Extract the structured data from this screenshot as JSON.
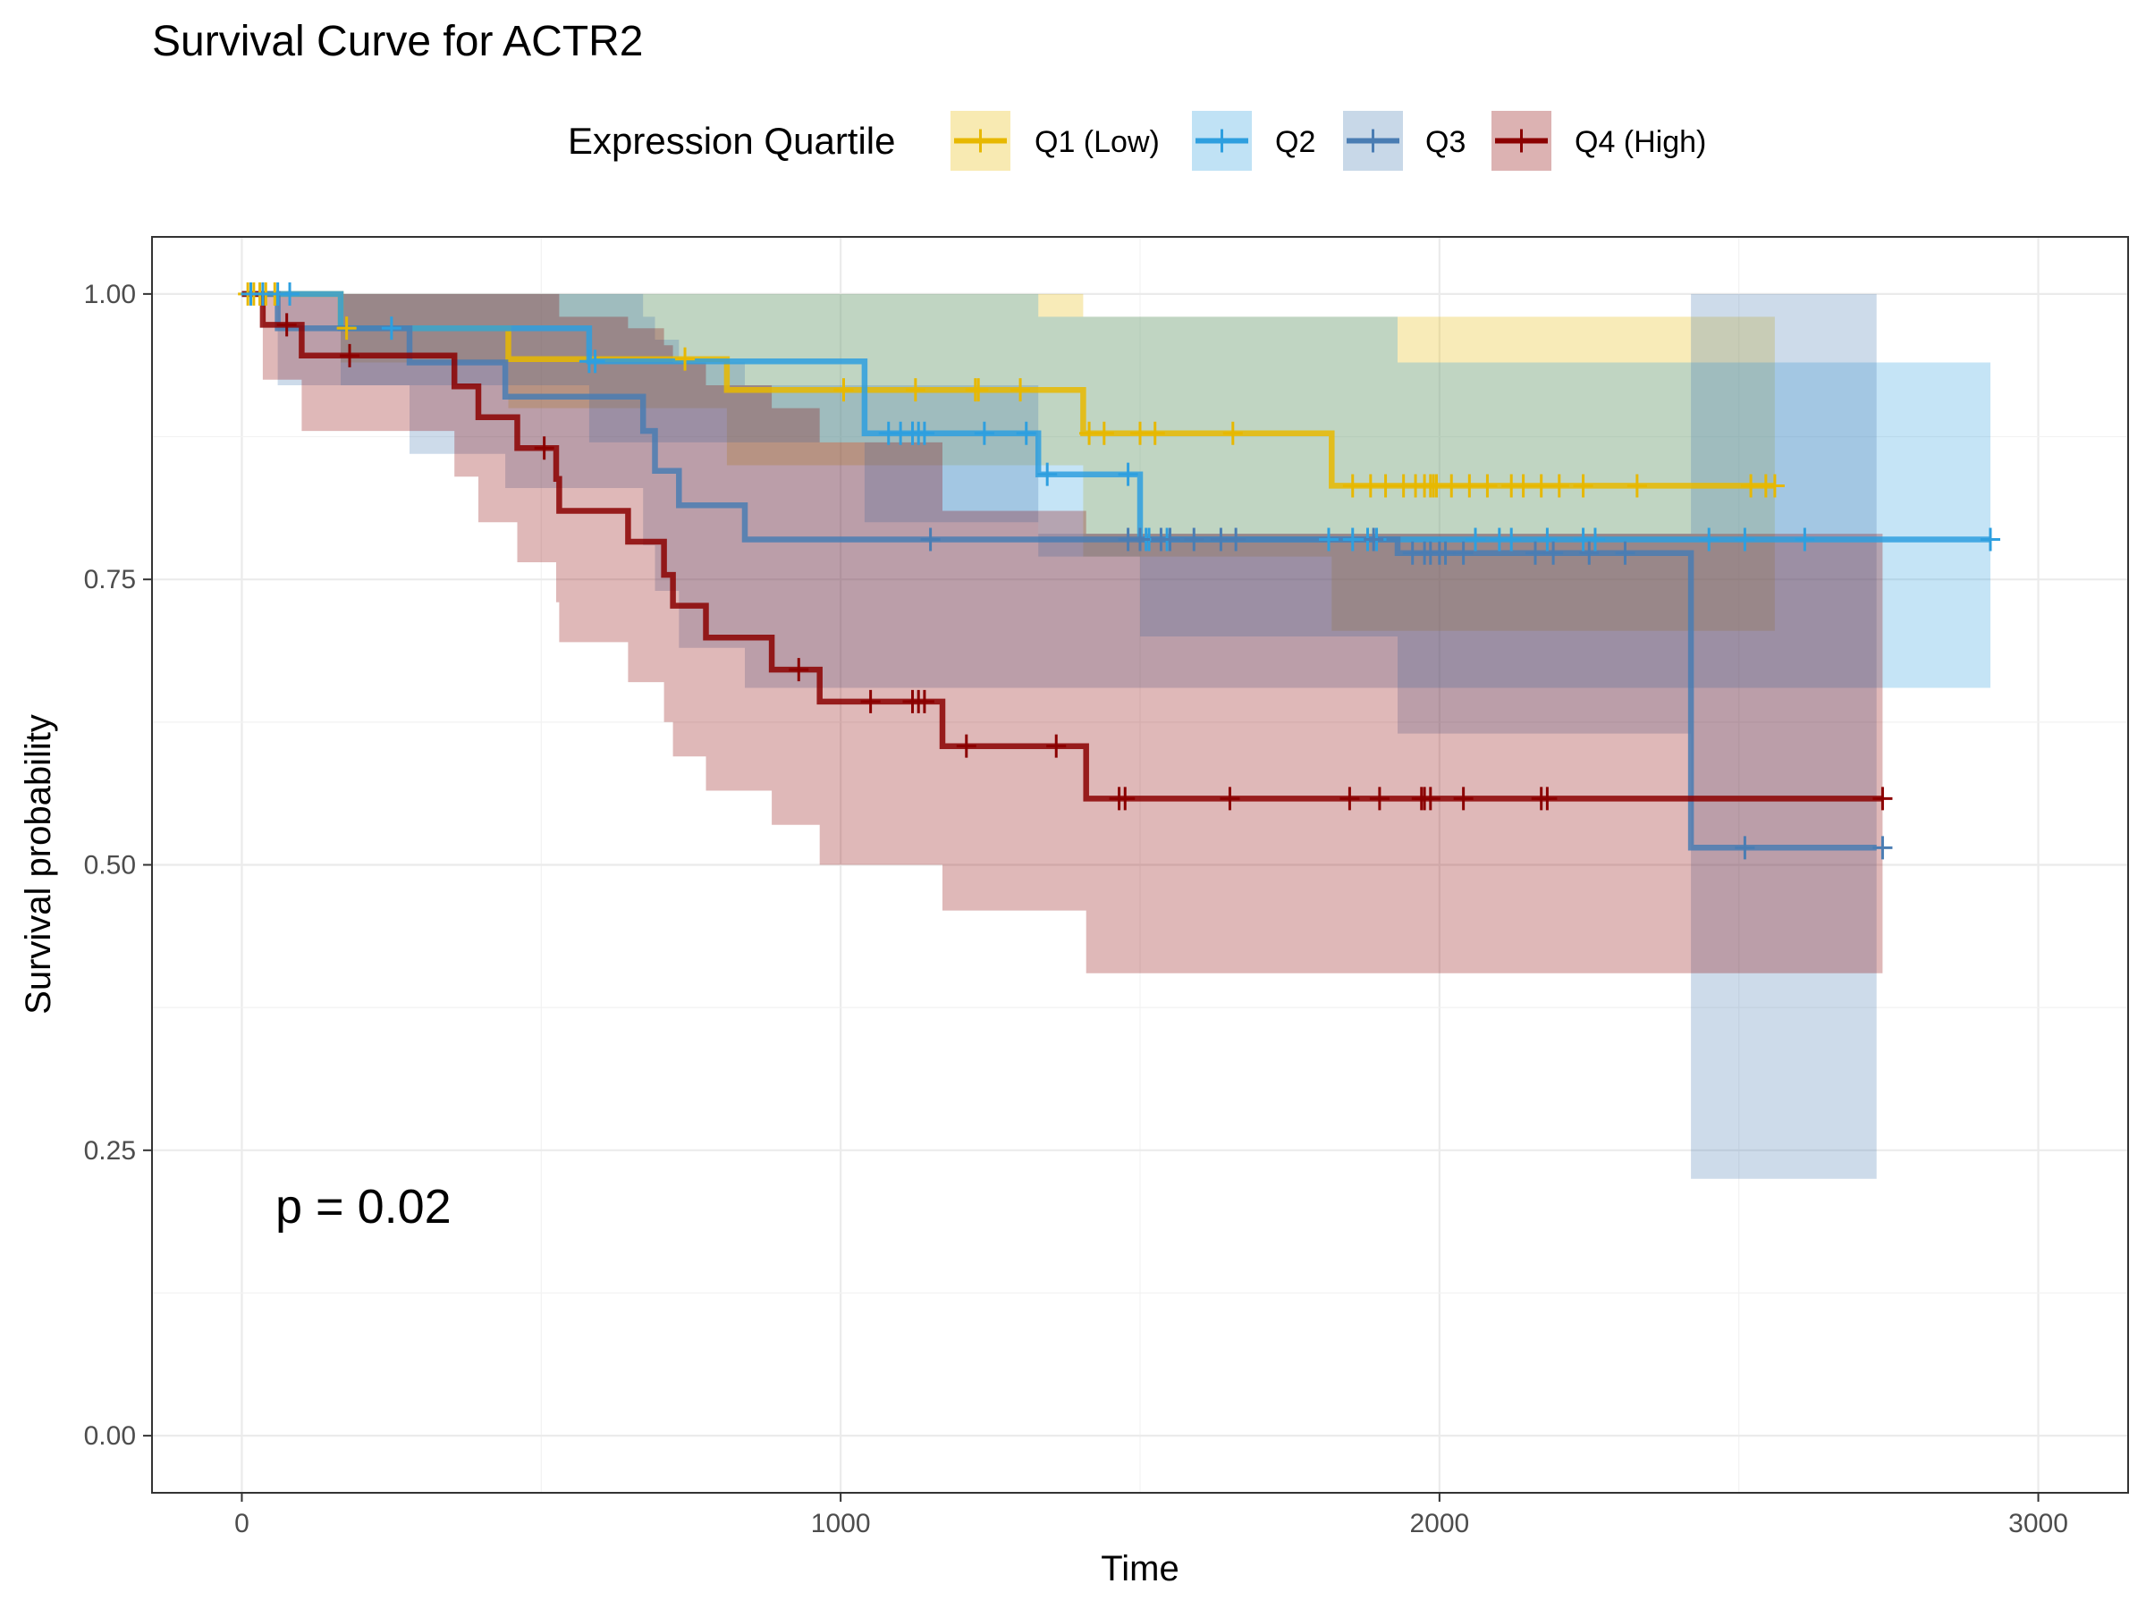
{
  "chart_data": {
    "type": "line",
    "subtype": "kaplan-meier survival curve with confidence bands",
    "title": "Survival Curve for ACTR2",
    "xlabel": "Time",
    "ylabel": "Survival probability",
    "xlim": [
      -150,
      3150
    ],
    "ylim": [
      -0.05,
      1.05
    ],
    "x_ticks": [
      0,
      1000,
      2000,
      3000
    ],
    "y_ticks": [
      0.0,
      0.25,
      0.5,
      0.75,
      1.0
    ],
    "x_tick_labels": [
      "0",
      "1000",
      "2000",
      "3000"
    ],
    "y_tick_labels": [
      "0.00",
      "0.25",
      "0.50",
      "0.75",
      "1.00"
    ],
    "grid": true,
    "legend_title": "Expression Quartile",
    "legend_position": "top",
    "annotation": "p = 0.02",
    "series": [
      {
        "name": "Q1 (Low)",
        "color": "#E7B800",
        "steps": [
          [
            0,
            1.0
          ],
          [
            165,
            0.97
          ],
          [
            445,
            0.943
          ],
          [
            810,
            0.916
          ],
          [
            1405,
            0.878
          ],
          [
            1820,
            0.832
          ],
          [
            2560,
            0.832
          ]
        ],
        "lower": [
          [
            0,
            1.0
          ],
          [
            165,
            0.94
          ],
          [
            445,
            0.9
          ],
          [
            810,
            0.85
          ],
          [
            1405,
            0.77
          ],
          [
            1820,
            0.705
          ],
          [
            2560,
            0.705
          ]
        ],
        "upper": [
          [
            0,
            1.0
          ],
          [
            165,
            1.0
          ],
          [
            445,
            1.0
          ],
          [
            810,
            1.0
          ],
          [
            1405,
            0.98
          ],
          [
            1820,
            0.98
          ],
          [
            2560,
            0.98
          ]
        ],
        "censor_times": [
          10,
          20,
          30,
          40,
          55,
          175,
          740,
          1005,
          1125,
          1225,
          1230,
          1300,
          1415,
          1440,
          1500,
          1525,
          1655,
          1855,
          1885,
          1910,
          1940,
          1960,
          1975,
          1985,
          1990,
          1995,
          2020,
          2050,
          2080,
          2120,
          2140,
          2170,
          2200,
          2240,
          2330,
          2520,
          2545,
          2560
        ]
      },
      {
        "name": "Q2",
        "color": "#2E9FDF",
        "steps": [
          [
            0,
            1.0
          ],
          [
            165,
            0.97
          ],
          [
            580,
            0.941
          ],
          [
            1040,
            0.878
          ],
          [
            1330,
            0.842
          ],
          [
            1500,
            0.785
          ],
          [
            1930,
            0.785
          ],
          [
            2920,
            0.785
          ]
        ],
        "lower": [
          [
            0,
            1.0
          ],
          [
            165,
            0.92
          ],
          [
            580,
            0.87
          ],
          [
            1040,
            0.8
          ],
          [
            1330,
            0.77
          ],
          [
            1500,
            0.7
          ],
          [
            1930,
            0.655
          ],
          [
            2920,
            0.655
          ]
        ],
        "upper": [
          [
            0,
            1.0
          ],
          [
            580,
            1.0
          ],
          [
            1040,
            1.0
          ],
          [
            1330,
            0.98
          ],
          [
            1930,
            0.94
          ],
          [
            2920,
            0.94
          ]
        ],
        "censor_times": [
          15,
          35,
          60,
          80,
          250,
          580,
          590,
          1080,
          1100,
          1120,
          1140,
          1120,
          1130,
          1240,
          1310,
          1345,
          1480,
          1500,
          1510,
          1515,
          1545,
          1815,
          1855,
          1880,
          1895,
          2060,
          2100,
          2120,
          2180,
          2240,
          2260,
          2450,
          2510,
          2610,
          2920
        ]
      },
      {
        "name": "Q3",
        "color": "#4A7DB3",
        "steps": [
          [
            0,
            1.0
          ],
          [
            60,
            0.97
          ],
          [
            280,
            0.94
          ],
          [
            440,
            0.91
          ],
          [
            670,
            0.88
          ],
          [
            690,
            0.845
          ],
          [
            730,
            0.815
          ],
          [
            840,
            0.785
          ],
          [
            1920,
            0.785
          ],
          [
            1930,
            0.773
          ],
          [
            2420,
            0.773
          ],
          [
            2420,
            0.515
          ],
          [
            2730,
            0.515
          ]
        ],
        "lower": [
          [
            0,
            1.0
          ],
          [
            60,
            0.92
          ],
          [
            280,
            0.86
          ],
          [
            440,
            0.83
          ],
          [
            670,
            0.78
          ],
          [
            690,
            0.74
          ],
          [
            730,
            0.69
          ],
          [
            840,
            0.655
          ],
          [
            1930,
            0.615
          ],
          [
            2420,
            0.225
          ],
          [
            2730,
            0.225
          ]
        ],
        "upper": [
          [
            0,
            1.0
          ],
          [
            440,
            1.0
          ],
          [
            670,
            0.98
          ],
          [
            690,
            0.96
          ],
          [
            730,
            0.94
          ],
          [
            840,
            0.92
          ],
          [
            1330,
            0.79
          ],
          [
            1930,
            0.79
          ],
          [
            2420,
            1.0
          ],
          [
            2730,
            1.0
          ]
        ],
        "censor_times": [
          1150,
          1480,
          1500,
          1535,
          1550,
          1590,
          1635,
          1660,
          1890,
          1955,
          1975,
          1985,
          2000,
          2010,
          2040,
          2160,
          2190,
          2250,
          2310,
          2510,
          2740
        ]
      },
      {
        "name": "Q4 (High)",
        "color": "#8B0000",
        "steps": [
          [
            0,
            1.0
          ],
          [
            35,
            0.973
          ],
          [
            100,
            0.946
          ],
          [
            355,
            0.919
          ],
          [
            395,
            0.892
          ],
          [
            460,
            0.865
          ],
          [
            525,
            0.838
          ],
          [
            530,
            0.81
          ],
          [
            645,
            0.783
          ],
          [
            705,
            0.754
          ],
          [
            720,
            0.727
          ],
          [
            775,
            0.699
          ],
          [
            885,
            0.671
          ],
          [
            965,
            0.643
          ],
          [
            1170,
            0.604
          ],
          [
            1410,
            0.558
          ],
          [
            2740,
            0.558
          ]
        ],
        "lower": [
          [
            0,
            1.0
          ],
          [
            35,
            0.925
          ],
          [
            100,
            0.88
          ],
          [
            355,
            0.84
          ],
          [
            395,
            0.8
          ],
          [
            460,
            0.765
          ],
          [
            525,
            0.73
          ],
          [
            530,
            0.695
          ],
          [
            645,
            0.66
          ],
          [
            705,
            0.625
          ],
          [
            720,
            0.595
          ],
          [
            775,
            0.565
          ],
          [
            885,
            0.535
          ],
          [
            965,
            0.5
          ],
          [
            1170,
            0.46
          ],
          [
            1410,
            0.405
          ],
          [
            2740,
            0.405
          ]
        ],
        "upper": [
          [
            0,
            1.0
          ],
          [
            525,
            1.0
          ],
          [
            530,
            0.98
          ],
          [
            645,
            0.97
          ],
          [
            705,
            0.955
          ],
          [
            720,
            0.94
          ],
          [
            775,
            0.92
          ],
          [
            885,
            0.9
          ],
          [
            965,
            0.87
          ],
          [
            1170,
            0.81
          ],
          [
            1410,
            0.79
          ],
          [
            2740,
            0.76
          ]
        ],
        "censor_times": [
          75,
          180,
          505,
          930,
          1050,
          1120,
          1130,
          1140,
          1210,
          1360,
          1465,
          1475,
          1650,
          1850,
          1900,
          1970,
          1975,
          1985,
          2040,
          2170,
          2180,
          2740
        ]
      }
    ]
  }
}
